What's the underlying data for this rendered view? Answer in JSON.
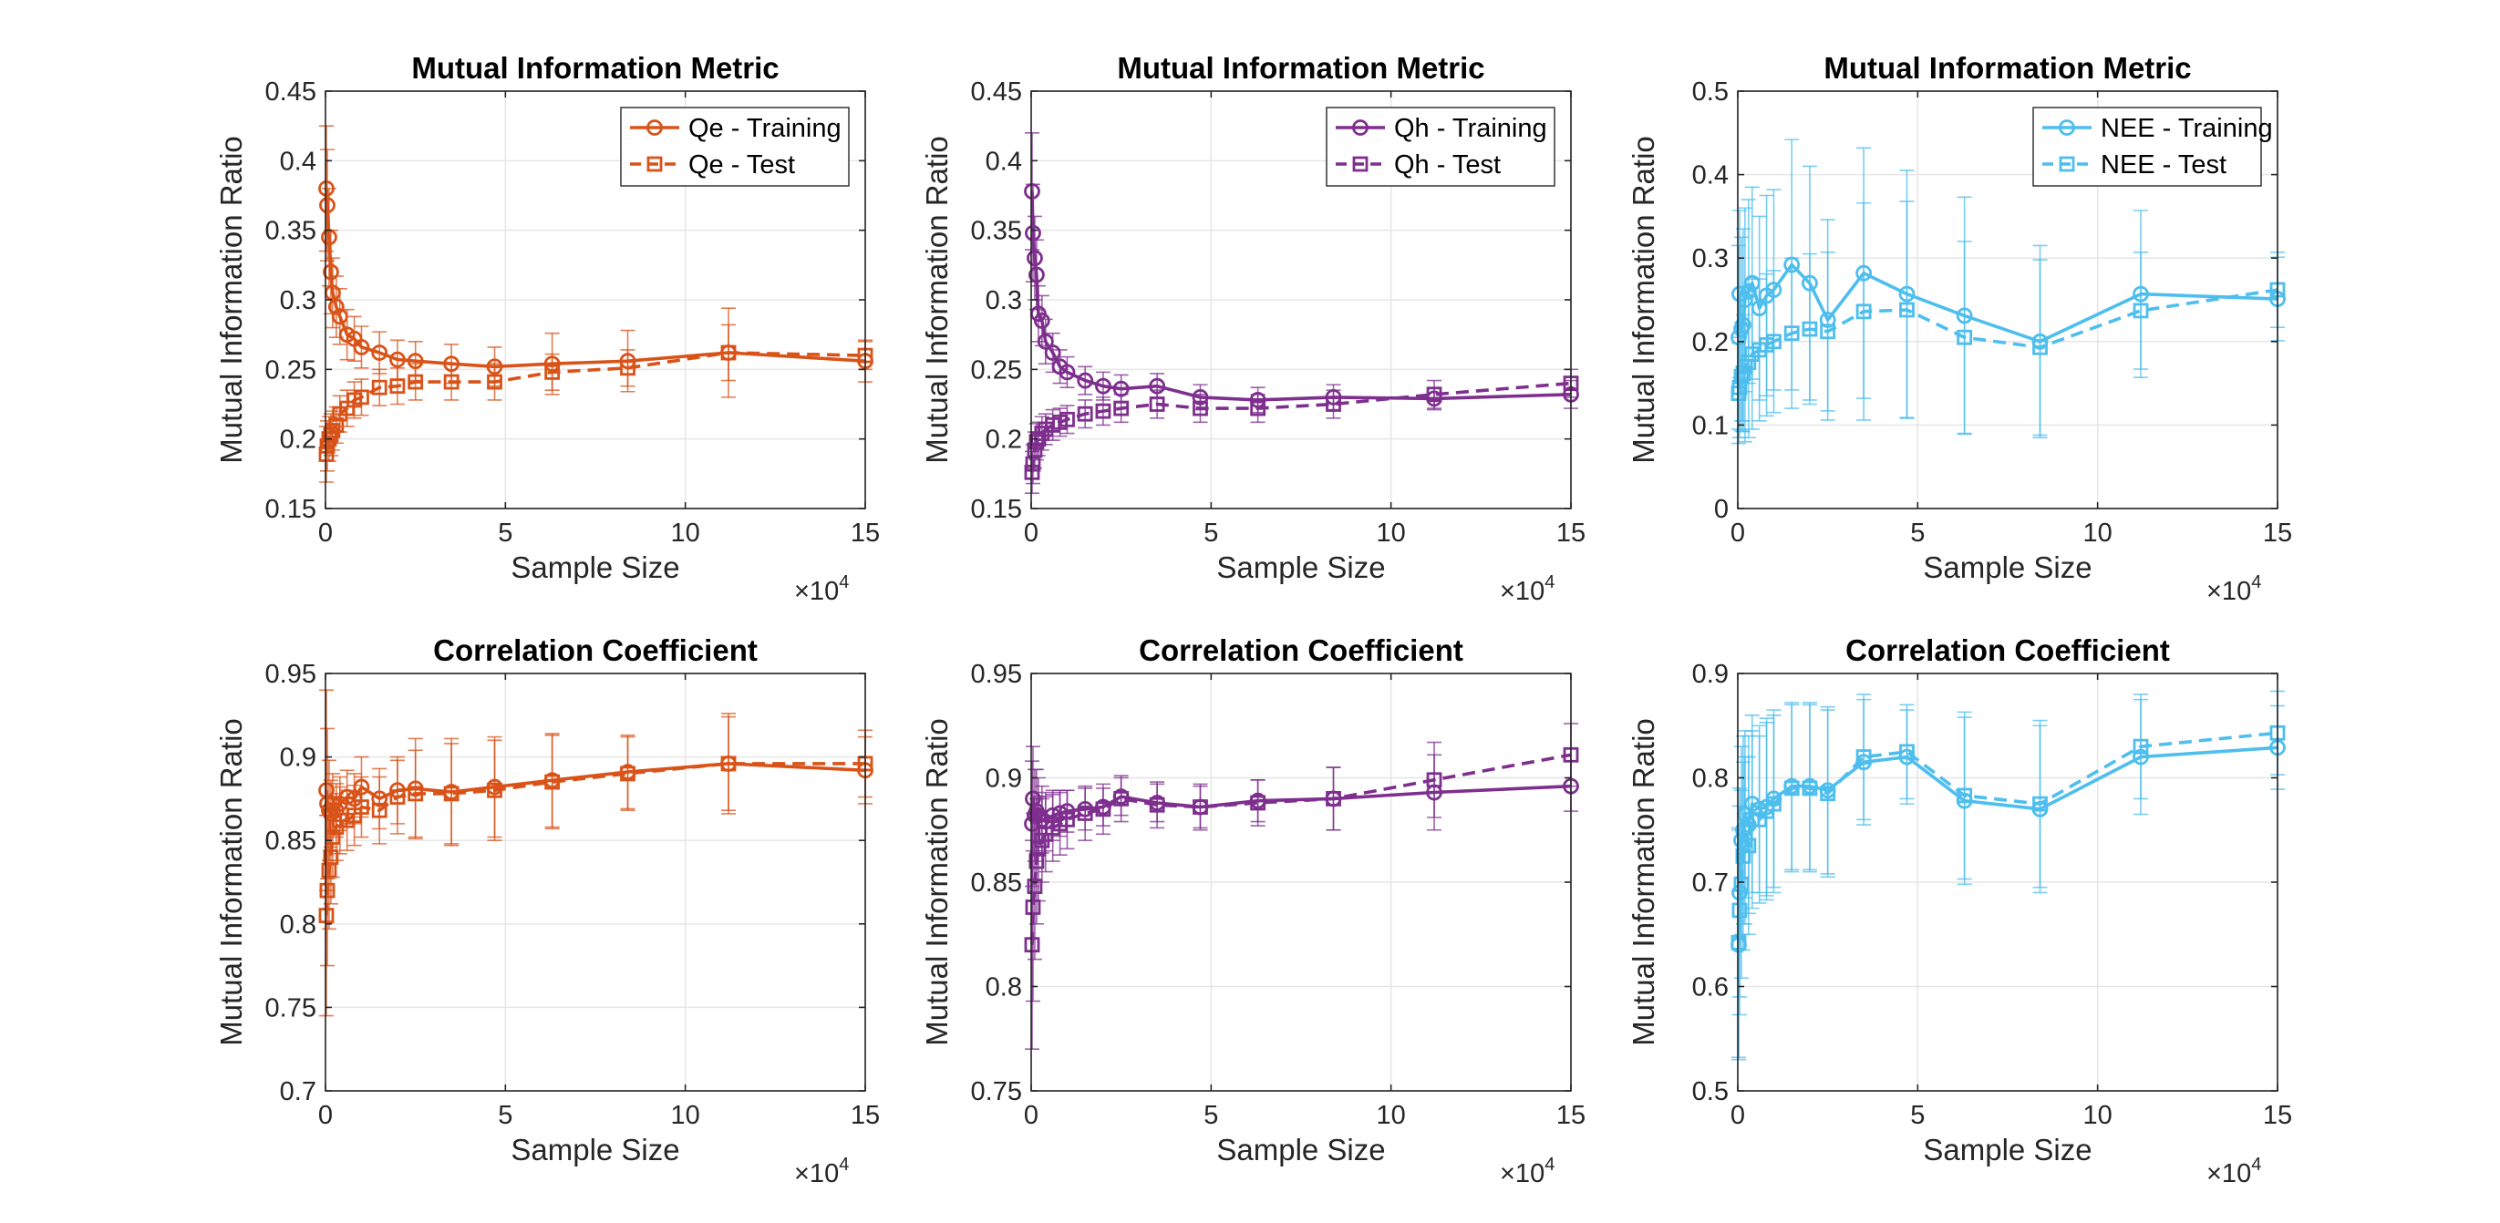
{
  "chart_data": [
    {
      "type": "line",
      "title": "Mutual Information Metric",
      "xlabel": "Sample Size",
      "ylabel": "Mutual Information Ratio",
      "x_exponent_base": "×10",
      "x_exponent": "4",
      "xlim": [
        0,
        15
      ],
      "ylim": [
        0.15,
        0.45
      ],
      "xticks": [
        "0",
        "5",
        "10",
        "15"
      ],
      "yticks": [
        "0.15",
        "0.2",
        "0.25",
        "0.3",
        "0.35",
        "0.4",
        "0.45"
      ],
      "grid": true,
      "legend": "top-right",
      "color": "#D95319",
      "x": [
        0.025,
        0.05,
        0.1,
        0.15,
        0.2,
        0.3,
        0.4,
        0.6,
        0.8,
        1.0,
        1.5,
        2.0,
        2.5,
        3.5,
        4.7,
        6.3,
        8.4,
        11.2,
        15.0
      ],
      "series": [
        {
          "name": "Qe - Training",
          "style": "solid",
          "marker": "circle",
          "values": [
            0.38,
            0.368,
            0.345,
            0.32,
            0.305,
            0.295,
            0.288,
            0.275,
            0.272,
            0.266,
            0.262,
            0.257,
            0.256,
            0.254,
            0.252,
            0.254,
            0.256,
            0.262,
            0.256
          ],
          "errors": [
            0.045,
            0.04,
            0.035,
            0.03,
            0.025,
            0.022,
            0.02,
            0.018,
            0.016,
            0.015,
            0.015,
            0.014,
            0.014,
            0.014,
            0.014,
            0.022,
            0.022,
            0.032,
            0.015
          ]
        },
        {
          "name": "Qe - Test",
          "style": "dashed",
          "marker": "square",
          "values": [
            0.189,
            0.195,
            0.2,
            0.203,
            0.206,
            0.21,
            0.218,
            0.222,
            0.228,
            0.23,
            0.237,
            0.238,
            0.241,
            0.241,
            0.241,
            0.248,
            0.251,
            0.262,
            0.26
          ],
          "errors": [
            0.02,
            0.018,
            0.016,
            0.015,
            0.014,
            0.013,
            0.013,
            0.013,
            0.013,
            0.013,
            0.013,
            0.013,
            0.013,
            0.013,
            0.013,
            0.013,
            0.013,
            0.02,
            0.01
          ]
        }
      ]
    },
    {
      "type": "line",
      "title": "Mutual Information Metric",
      "xlabel": "Sample Size",
      "ylabel": "Mutual Information Ratio",
      "x_exponent_base": "×10",
      "x_exponent": "4",
      "xlim": [
        0,
        15
      ],
      "ylim": [
        0.15,
        0.45
      ],
      "xticks": [
        "0",
        "5",
        "10",
        "15"
      ],
      "yticks": [
        "0.15",
        "0.2",
        "0.25",
        "0.3",
        "0.35",
        "0.4",
        "0.45"
      ],
      "grid": true,
      "legend": "top-right",
      "color": "#7E2F8E",
      "x": [
        0.025,
        0.05,
        0.1,
        0.15,
        0.2,
        0.3,
        0.4,
        0.6,
        0.8,
        1.0,
        1.5,
        2.0,
        2.5,
        3.5,
        4.7,
        6.3,
        8.4,
        11.2,
        15.0
      ],
      "series": [
        {
          "name": "Qh - Training",
          "style": "solid",
          "marker": "circle",
          "values": [
            0.378,
            0.348,
            0.33,
            0.318,
            0.29,
            0.285,
            0.27,
            0.262,
            0.252,
            0.248,
            0.242,
            0.238,
            0.236,
            0.238,
            0.23,
            0.228,
            0.23,
            0.229,
            0.232
          ],
          "errors": [
            0.042,
            0.035,
            0.03,
            0.025,
            0.02,
            0.018,
            0.016,
            0.014,
            0.012,
            0.011,
            0.01,
            0.01,
            0.01,
            0.009,
            0.009,
            0.009,
            0.009,
            0.008,
            0.01
          ]
        },
        {
          "name": "Qh - Test",
          "style": "dashed",
          "marker": "square",
          "values": [
            0.176,
            0.182,
            0.192,
            0.198,
            0.2,
            0.204,
            0.207,
            0.21,
            0.212,
            0.214,
            0.218,
            0.22,
            0.222,
            0.225,
            0.222,
            0.222,
            0.225,
            0.232,
            0.24
          ],
          "errors": [
            0.015,
            0.014,
            0.013,
            0.013,
            0.012,
            0.012,
            0.011,
            0.011,
            0.01,
            0.01,
            0.01,
            0.01,
            0.01,
            0.01,
            0.01,
            0.01,
            0.01,
            0.01,
            0.01
          ]
        }
      ]
    },
    {
      "type": "line",
      "title": "Mutual Information Metric",
      "xlabel": "Sample Size",
      "ylabel": "Mutual Information Ratio",
      "x_exponent_base": "×10",
      "x_exponent": "4",
      "xlim": [
        0,
        15
      ],
      "ylim": [
        0,
        0.5
      ],
      "xticks": [
        "0",
        "5",
        "10",
        "15"
      ],
      "yticks": [
        "0",
        "0.1",
        "0.2",
        "0.3",
        "0.4",
        "0.5"
      ],
      "grid": true,
      "legend": "top-right",
      "color": "#4DBEEE",
      "x": [
        0.025,
        0.05,
        0.1,
        0.15,
        0.2,
        0.3,
        0.4,
        0.6,
        0.8,
        1.0,
        1.5,
        2.0,
        2.5,
        3.5,
        4.7,
        6.3,
        8.4,
        11.2,
        15.0
      ],
      "series": [
        {
          "name": "NEE - Training",
          "style": "solid",
          "marker": "circle",
          "values": [
            0.205,
            0.257,
            0.215,
            0.22,
            0.25,
            0.26,
            0.27,
            0.24,
            0.255,
            0.262,
            0.292,
            0.27,
            0.226,
            0.282,
            0.257,
            0.231,
            0.2,
            0.257,
            0.251
          ],
          "errors": [
            0.11,
            0.1,
            0.11,
            0.115,
            0.11,
            0.11,
            0.115,
            0.11,
            0.12,
            0.12,
            0.15,
            0.14,
            0.12,
            0.15,
            0.148,
            0.142,
            0.115,
            0.1,
            0.05
          ]
        },
        {
          "name": "NEE - Test",
          "style": "dashed",
          "marker": "square",
          "values": [
            0.138,
            0.145,
            0.158,
            0.162,
            0.17,
            0.175,
            0.185,
            0.19,
            0.196,
            0.2,
            0.21,
            0.215,
            0.212,
            0.236,
            0.238,
            0.205,
            0.193,
            0.237,
            0.262
          ],
          "errors": [
            0.06,
            0.06,
            0.065,
            0.07,
            0.09,
            0.09,
            0.09,
            0.085,
            0.085,
            0.085,
            0.09,
            0.09,
            0.095,
            0.13,
            0.13,
            0.115,
            0.105,
            0.07,
            0.045
          ]
        }
      ]
    },
    {
      "type": "line",
      "title": "Correlation Coefficient",
      "xlabel": "Sample Size",
      "ylabel": "Mutual Information Ratio",
      "x_exponent_base": "×10",
      "x_exponent": "4",
      "xlim": [
        0,
        15
      ],
      "ylim": [
        0.7,
        0.95
      ],
      "xticks": [
        "0",
        "5",
        "10",
        "15"
      ],
      "yticks": [
        "0.7",
        "0.75",
        "0.8",
        "0.85",
        "0.9",
        "0.95"
      ],
      "grid": true,
      "color": "#D95319",
      "x": [
        0.025,
        0.05,
        0.1,
        0.15,
        0.2,
        0.3,
        0.4,
        0.6,
        0.8,
        1.0,
        1.5,
        2.0,
        2.5,
        3.5,
        4.7,
        6.3,
        8.4,
        11.2,
        15.0
      ],
      "series": [
        {
          "name": "Qe - Training",
          "style": "solid",
          "marker": "circle",
          "values": [
            0.88,
            0.872,
            0.868,
            0.866,
            0.872,
            0.868,
            0.872,
            0.876,
            0.875,
            0.882,
            0.875,
            0.88,
            0.881,
            0.879,
            0.882,
            0.886,
            0.891,
            0.896,
            0.892
          ],
          "errors": [
            0.06,
            0.045,
            0.03,
            0.02,
            0.018,
            0.016,
            0.016,
            0.016,
            0.015,
            0.018,
            0.018,
            0.02,
            0.03,
            0.032,
            0.03,
            0.028,
            0.022,
            0.028,
            0.02
          ]
        },
        {
          "name": "Qe - Test",
          "style": "dashed",
          "marker": "square",
          "values": [
            0.805,
            0.82,
            0.832,
            0.84,
            0.852,
            0.858,
            0.862,
            0.862,
            0.865,
            0.87,
            0.868,
            0.876,
            0.878,
            0.878,
            0.88,
            0.885,
            0.89,
            0.896,
            0.896
          ],
          "errors": [
            0.06,
            0.045,
            0.035,
            0.028,
            0.024,
            0.02,
            0.02,
            0.018,
            0.018,
            0.018,
            0.02,
            0.022,
            0.026,
            0.03,
            0.03,
            0.028,
            0.022,
            0.03,
            0.02
          ]
        }
      ]
    },
    {
      "type": "line",
      "title": "Correlation Coefficient",
      "xlabel": "Sample Size",
      "ylabel": "Mutual Information Ratio",
      "x_exponent_base": "×10",
      "x_exponent": "4",
      "xlim": [
        0,
        15
      ],
      "ylim": [
        0.75,
        0.95
      ],
      "xticks": [
        "0",
        "5",
        "10",
        "15"
      ],
      "yticks": [
        "0.75",
        "0.8",
        "0.85",
        "0.9",
        "0.95"
      ],
      "grid": true,
      "color": "#7E2F8E",
      "x": [
        0.025,
        0.05,
        0.1,
        0.15,
        0.2,
        0.3,
        0.4,
        0.6,
        0.8,
        1.0,
        1.5,
        2.0,
        2.5,
        3.5,
        4.7,
        6.3,
        8.4,
        11.2,
        15.0
      ],
      "series": [
        {
          "name": "Qh - Training",
          "style": "solid",
          "marker": "circle",
          "values": [
            0.878,
            0.89,
            0.882,
            0.884,
            0.882,
            0.88,
            0.879,
            0.882,
            0.883,
            0.884,
            0.885,
            0.886,
            0.891,
            0.888,
            0.886,
            0.889,
            0.89,
            0.893,
            0.896
          ],
          "errors": [
            0.03,
            0.025,
            0.022,
            0.02,
            0.018,
            0.016,
            0.014,
            0.012,
            0.011,
            0.01,
            0.01,
            0.009,
            0.009,
            0.009,
            0.01,
            0.01,
            0.015,
            0.018,
            0.012
          ]
        },
        {
          "name": "Qh - Test",
          "style": "dashed",
          "marker": "square",
          "values": [
            0.82,
            0.838,
            0.848,
            0.86,
            0.866,
            0.87,
            0.873,
            0.876,
            0.878,
            0.88,
            0.883,
            0.885,
            0.89,
            0.887,
            0.886,
            0.888,
            0.89,
            0.899,
            0.911
          ],
          "errors": [
            0.05,
            0.045,
            0.035,
            0.03,
            0.025,
            0.02,
            0.018,
            0.016,
            0.015,
            0.014,
            0.013,
            0.012,
            0.011,
            0.011,
            0.011,
            0.011,
            0.015,
            0.018,
            0.015
          ]
        }
      ]
    },
    {
      "type": "line",
      "title": "Correlation Coefficient",
      "xlabel": "Sample Size",
      "ylabel": "Mutual Information Ratio",
      "x_exponent_base": "×10",
      "x_exponent": "4",
      "xlim": [
        0,
        15
      ],
      "ylim": [
        0.5,
        0.9
      ],
      "xticks": [
        "0",
        "5",
        "10",
        "15"
      ],
      "yticks": [
        "0.5",
        "0.6",
        "0.7",
        "0.8",
        "0.9"
      ],
      "grid": true,
      "color": "#4DBEEE",
      "x": [
        0.025,
        0.05,
        0.1,
        0.15,
        0.2,
        0.3,
        0.4,
        0.6,
        0.8,
        1.0,
        1.5,
        2.0,
        2.5,
        3.5,
        4.7,
        6.3,
        8.4,
        11.2,
        15.0
      ],
      "series": [
        {
          "name": "NEE - Training",
          "style": "solid",
          "marker": "circle",
          "values": [
            0.64,
            0.69,
            0.74,
            0.75,
            0.765,
            0.755,
            0.775,
            0.77,
            0.772,
            0.78,
            0.792,
            0.792,
            0.788,
            0.815,
            0.82,
            0.778,
            0.77,
            0.82,
            0.829
          ],
          "errors": [
            0.11,
            0.1,
            0.09,
            0.09,
            0.08,
            0.085,
            0.085,
            0.08,
            0.085,
            0.085,
            0.08,
            0.08,
            0.08,
            0.06,
            0.045,
            0.08,
            0.08,
            0.055,
            0.04
          ]
        },
        {
          "name": "NEE - Test",
          "style": "dashed",
          "marker": "square",
          "values": [
            0.642,
            0.673,
            0.698,
            0.725,
            0.74,
            0.735,
            0.76,
            0.76,
            0.768,
            0.775,
            0.79,
            0.79,
            0.785,
            0.82,
            0.825,
            0.783,
            0.775,
            0.83,
            0.843
          ],
          "errors": [
            0.11,
            0.1,
            0.09,
            0.09,
            0.08,
            0.085,
            0.085,
            0.08,
            0.085,
            0.085,
            0.08,
            0.08,
            0.08,
            0.06,
            0.045,
            0.08,
            0.08,
            0.05,
            0.04
          ]
        }
      ]
    }
  ]
}
